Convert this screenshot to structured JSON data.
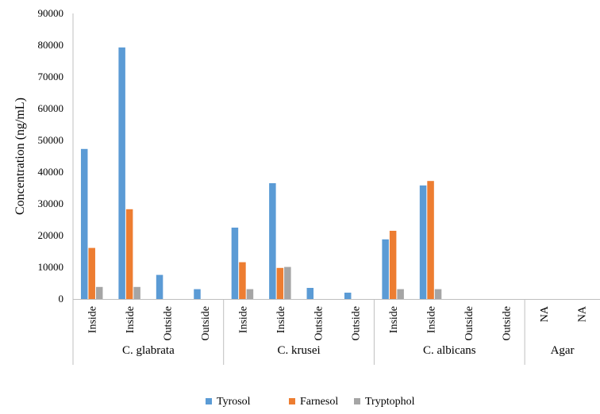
{
  "chart_data": {
    "type": "bar",
    "ylabel": "Concentration (ng/mL)",
    "ylim": [
      0,
      90000
    ],
    "yticks": [
      "0",
      "10000",
      "20000",
      "30000",
      "40000",
      "50000",
      "60000",
      "70000",
      "80000",
      "90000"
    ],
    "grid": false,
    "legend_position": "bottom",
    "categories": [
      "Inside",
      "Inside",
      "Outside",
      "Outside",
      "Inside",
      "Inside",
      "Outside",
      "Outside",
      "Inside",
      "Inside",
      "Outside",
      "Outside",
      "NA",
      "NA"
    ],
    "groups": [
      {
        "label": "C. glabrata",
        "count": 4
      },
      {
        "label": "C. krusei",
        "count": 4
      },
      {
        "label": "C. albicans",
        "count": 4
      },
      {
        "label": "Agar",
        "count": 2
      }
    ],
    "series": [
      {
        "name": "Tyrosol",
        "color": "#5b9bd5",
        "values": [
          47300,
          79300,
          7600,
          3100,
          22500,
          36500,
          3500,
          2000,
          18800,
          35800,
          0,
          0,
          0,
          0
        ]
      },
      {
        "name": "Farnesol",
        "color": "#ed7d31",
        "values": [
          16100,
          28300,
          0,
          0,
          11600,
          9800,
          0,
          0,
          21500,
          37200,
          0,
          0,
          0,
          0
        ]
      },
      {
        "name": "Tryptophol",
        "color": "#a5a5a5",
        "values": [
          3800,
          3800,
          0,
          0,
          3100,
          10100,
          0,
          0,
          3100,
          3100,
          0,
          0,
          0,
          0
        ]
      }
    ]
  }
}
